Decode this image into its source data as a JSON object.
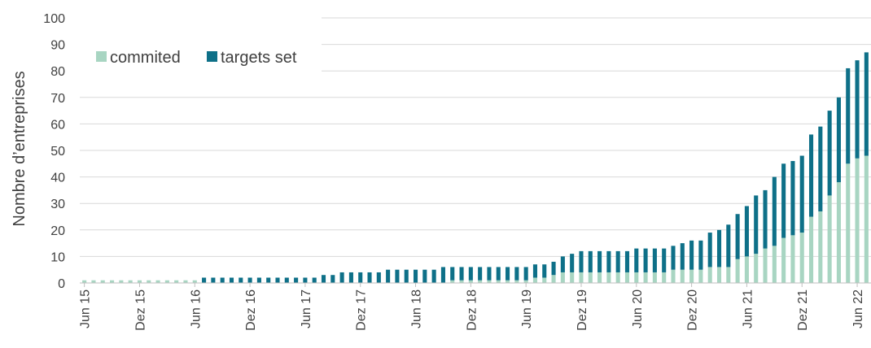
{
  "chart_data": {
    "type": "bar",
    "stacked": true,
    "ylabel": "Nombre d’entreprises",
    "ylim": [
      0,
      100
    ],
    "yticks": [
      0,
      10,
      20,
      30,
      40,
      50,
      60,
      70,
      80,
      90,
      100
    ],
    "grid": true,
    "legend": "top-left",
    "colors": {
      "commited": "#a8d5c2",
      "targets_set": "#0e7088"
    },
    "x_tick_labels": [
      "Jun 15",
      "Dez 15",
      "Jun 16",
      "Dez 16",
      "Jun 17",
      "Dez 17",
      "Jun 18",
      "Dez 18",
      "Jun 19",
      "Dez 19",
      "Jun 20",
      "Dez 20",
      "Jun 21",
      "Dez 21",
      "Jun 22"
    ],
    "categories": [
      "Jun 15",
      "Jul 15",
      "Aug 15",
      "Sep 15",
      "Okt 15",
      "Nov 15",
      "Dez 15",
      "Jan 16",
      "Feb 16",
      "Mär 16",
      "Apr 16",
      "Mai 16",
      "Jun 16",
      "Jul 16",
      "Aug 16",
      "Sep 16",
      "Okt 16",
      "Nov 16",
      "Dez 16",
      "Jan 17",
      "Feb 17",
      "Mär 17",
      "Apr 17",
      "Mai 17",
      "Jun 17",
      "Jul 17",
      "Aug 17",
      "Sep 17",
      "Okt 17",
      "Nov 17",
      "Dez 17",
      "Jan 18",
      "Feb 18",
      "Mär 18",
      "Apr 18",
      "Mai 18",
      "Jun 18",
      "Jul 18",
      "Aug 18",
      "Sep 18",
      "Okt 18",
      "Nov 18",
      "Dez 18",
      "Jan 19",
      "Feb 19",
      "Mär 19",
      "Apr 19",
      "Mai 19",
      "Jun 19",
      "Jul 19",
      "Aug 19",
      "Sep 19",
      "Okt 19",
      "Nov 19",
      "Dez 19",
      "Jan 20",
      "Feb 20",
      "Mär 20",
      "Apr 20",
      "Mai 20",
      "Jun 20",
      "Jul 20",
      "Aug 20",
      "Sep 20",
      "Okt 20",
      "Nov 20",
      "Dez 20",
      "Jan 21",
      "Feb 21",
      "Mär 21",
      "Apr 21",
      "Mai 21",
      "Jun 21",
      "Jul 21",
      "Aug 21",
      "Sep 21",
      "Okt 21",
      "Nov 21",
      "Dez 21",
      "Jan 22",
      "Feb 22",
      "Mär 22",
      "Apr 22",
      "Mai 22",
      "Jun 22",
      "Jul 22"
    ],
    "series": [
      {
        "name": "commited",
        "values": [
          1,
          1,
          1,
          1,
          1,
          1,
          1,
          1,
          1,
          1,
          1,
          1,
          1,
          0,
          0,
          0,
          0,
          0,
          0,
          0,
          0,
          0,
          0,
          0,
          0,
          0,
          0,
          0,
          0,
          0,
          0,
          0,
          0,
          0,
          0,
          0,
          0,
          0,
          0,
          0,
          1,
          1,
          1,
          1,
          1,
          1,
          1,
          1,
          1,
          2,
          2,
          3,
          4,
          4,
          4,
          4,
          4,
          4,
          4,
          4,
          4,
          4,
          4,
          4,
          5,
          5,
          5,
          5,
          6,
          6,
          6,
          9,
          10,
          11,
          13,
          14,
          17,
          18,
          19,
          25,
          27,
          33,
          38,
          45,
          47,
          48
        ]
      },
      {
        "name": "targets set",
        "values": [
          0,
          0,
          0,
          0,
          0,
          0,
          0,
          0,
          0,
          0,
          0,
          0,
          0,
          2,
          2,
          2,
          2,
          2,
          2,
          2,
          2,
          2,
          2,
          2,
          2,
          2,
          3,
          3,
          4,
          4,
          4,
          4,
          4,
          5,
          5,
          5,
          5,
          5,
          5,
          6,
          5,
          5,
          5,
          5,
          5,
          5,
          5,
          5,
          5,
          5,
          5,
          5,
          6,
          7,
          8,
          8,
          8,
          8,
          8,
          8,
          9,
          9,
          9,
          9,
          9,
          10,
          11,
          11,
          13,
          14,
          16,
          17,
          19,
          22,
          22,
          26,
          28,
          28,
          29,
          31,
          32,
          32,
          32,
          36,
          37,
          39
        ]
      }
    ]
  }
}
